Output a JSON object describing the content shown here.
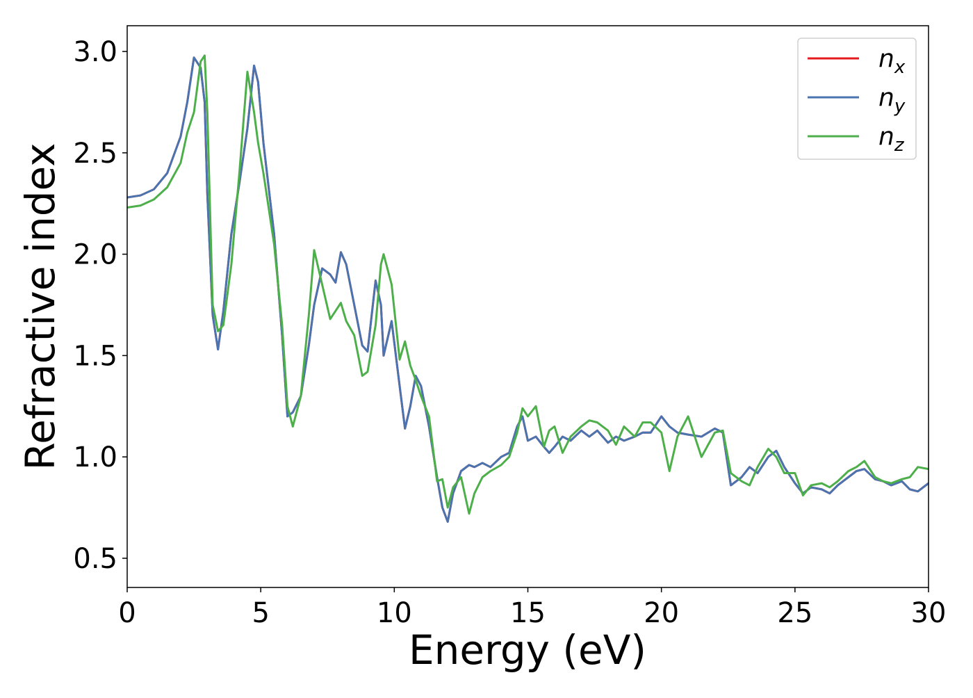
{
  "chart_data": {
    "type": "line",
    "xlabel": "Energy (eV)",
    "ylabel": "Refractive index",
    "x": [
      0,
      0.5,
      1,
      1.5,
      2,
      2.25,
      2.5,
      2.75,
      2.9,
      3.0,
      3.2,
      3.4,
      3.6,
      3.9,
      4.2,
      4.5,
      4.75,
      4.9,
      5.1,
      5.5,
      5.8,
      6.0,
      6.2,
      6.5,
      6.8,
      7.0,
      7.3,
      7.6,
      7.8,
      8.0,
      8.2,
      8.5,
      8.8,
      9.0,
      9.3,
      9.5,
      9.6,
      9.9,
      10.2,
      10.4,
      10.6,
      10.8,
      11.0,
      11.3,
      11.6,
      11.8,
      12.0,
      12.2,
      12.5,
      12.8,
      13.0,
      13.3,
      13.6,
      14.0,
      14.3,
      14.6,
      14.8,
      15.0,
      15.3,
      15.6,
      15.8,
      16.0,
      16.3,
      16.6,
      17.0,
      17.3,
      17.6,
      18.0,
      18.3,
      18.6,
      19.0,
      19.3,
      19.6,
      20.0,
      20.3,
      20.6,
      21.0,
      21.5,
      22.0,
      22.3,
      22.6,
      23.0,
      23.3,
      23.6,
      24.0,
      24.3,
      24.6,
      25.0,
      25.3,
      25.6,
      26.0,
      26.3,
      26.6,
      27.0,
      27.3,
      27.6,
      28.0,
      28.3,
      28.6,
      29.0,
      29.3,
      29.6,
      30.0
    ],
    "series": [
      {
        "name": "n_x",
        "color": "#e41a1c",
        "values": [
          2.28,
          2.29,
          2.32,
          2.4,
          2.58,
          2.75,
          2.97,
          2.92,
          2.75,
          2.3,
          1.7,
          1.53,
          1.72,
          2.1,
          2.35,
          2.62,
          2.93,
          2.85,
          2.55,
          2.1,
          1.6,
          1.2,
          1.22,
          1.3,
          1.55,
          1.75,
          1.93,
          1.9,
          1.86,
          2.01,
          1.95,
          1.75,
          1.55,
          1.52,
          1.87,
          1.75,
          1.5,
          1.67,
          1.35,
          1.14,
          1.25,
          1.4,
          1.35,
          1.15,
          0.9,
          0.75,
          0.68,
          0.82,
          0.93,
          0.96,
          0.95,
          0.97,
          0.95,
          1.0,
          1.02,
          1.15,
          1.2,
          1.08,
          1.1,
          1.05,
          1.02,
          1.05,
          1.1,
          1.08,
          1.13,
          1.1,
          1.13,
          1.07,
          1.1,
          1.08,
          1.1,
          1.12,
          1.12,
          1.2,
          1.15,
          1.12,
          1.11,
          1.1,
          1.14,
          1.12,
          0.86,
          0.9,
          0.95,
          0.92,
          1.0,
          1.03,
          0.95,
          0.87,
          0.82,
          0.85,
          0.84,
          0.82,
          0.86,
          0.9,
          0.93,
          0.94,
          0.89,
          0.88,
          0.86,
          0.88,
          0.84,
          0.83,
          0.87
        ]
      },
      {
        "name": "n_y",
        "color": "#4a74b0",
        "values": [
          2.28,
          2.29,
          2.32,
          2.4,
          2.58,
          2.75,
          2.97,
          2.92,
          2.75,
          2.3,
          1.7,
          1.53,
          1.72,
          2.1,
          2.35,
          2.62,
          2.93,
          2.85,
          2.55,
          2.1,
          1.6,
          1.2,
          1.22,
          1.3,
          1.55,
          1.75,
          1.93,
          1.9,
          1.86,
          2.01,
          1.95,
          1.75,
          1.55,
          1.52,
          1.87,
          1.75,
          1.5,
          1.67,
          1.35,
          1.14,
          1.25,
          1.4,
          1.35,
          1.15,
          0.9,
          0.75,
          0.68,
          0.82,
          0.93,
          0.96,
          0.95,
          0.97,
          0.95,
          1.0,
          1.02,
          1.15,
          1.2,
          1.08,
          1.1,
          1.05,
          1.02,
          1.05,
          1.1,
          1.08,
          1.13,
          1.1,
          1.13,
          1.07,
          1.1,
          1.08,
          1.1,
          1.12,
          1.12,
          1.2,
          1.15,
          1.12,
          1.11,
          1.1,
          1.14,
          1.12,
          0.86,
          0.9,
          0.95,
          0.92,
          1.0,
          1.03,
          0.95,
          0.87,
          0.82,
          0.85,
          0.84,
          0.82,
          0.86,
          0.9,
          0.93,
          0.94,
          0.89,
          0.88,
          0.86,
          0.88,
          0.84,
          0.83,
          0.87
        ]
      },
      {
        "name": "n_z",
        "color": "#4daf4a",
        "values": [
          2.23,
          2.24,
          2.27,
          2.33,
          2.45,
          2.6,
          2.7,
          2.95,
          2.98,
          2.7,
          1.75,
          1.62,
          1.65,
          1.95,
          2.4,
          2.9,
          2.7,
          2.55,
          2.4,
          2.05,
          1.65,
          1.25,
          1.15,
          1.3,
          1.7,
          2.02,
          1.85,
          1.68,
          1.72,
          1.76,
          1.67,
          1.6,
          1.4,
          1.42,
          1.65,
          1.95,
          2.0,
          1.85,
          1.48,
          1.57,
          1.45,
          1.38,
          1.3,
          1.2,
          0.88,
          0.89,
          0.75,
          0.85,
          0.9,
          0.72,
          0.82,
          0.9,
          0.93,
          0.96,
          1.0,
          1.12,
          1.24,
          1.2,
          1.25,
          1.05,
          1.13,
          1.15,
          1.02,
          1.1,
          1.15,
          1.18,
          1.17,
          1.13,
          1.06,
          1.15,
          1.1,
          1.17,
          1.17,
          1.12,
          0.93,
          1.1,
          1.2,
          1.0,
          1.12,
          1.13,
          0.92,
          0.88,
          0.86,
          0.95,
          1.04,
          1.0,
          0.92,
          0.92,
          0.81,
          0.86,
          0.87,
          0.85,
          0.88,
          0.93,
          0.95,
          0.98,
          0.9,
          0.88,
          0.87,
          0.89,
          0.9,
          0.95,
          0.94
        ]
      }
    ],
    "xlim": [
      0,
      30
    ],
    "xticks": [
      0,
      5,
      10,
      15,
      20,
      25,
      30
    ],
    "ylim": [
      0.356,
      3.127
    ],
    "yticks": [
      {
        "value": 0.5,
        "label": "0.5"
      },
      {
        "value": 1,
        "label": "1.0"
      },
      {
        "value": 1.5,
        "label": "1.5"
      },
      {
        "value": 2,
        "label": "2.0"
      },
      {
        "value": 2.5,
        "label": "2.5"
      },
      {
        "value": 3,
        "label": "3.0"
      }
    ],
    "grid": false,
    "legend": "upper right"
  }
}
